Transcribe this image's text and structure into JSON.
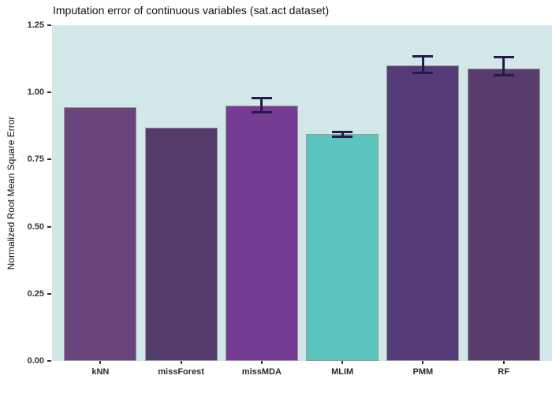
{
  "chart_data": {
    "type": "bar",
    "title": "Imputation error of continuous variables (sat.act dataset)",
    "xlabel": "",
    "ylabel": "Normalized Root Mean Square Error",
    "categories": [
      "kNN",
      "missForest",
      "missMDA",
      "MLIM",
      "PMM",
      "RF"
    ],
    "values": [
      0.945,
      0.87,
      0.95,
      0.845,
      1.1,
      1.088
    ],
    "error_bars": [
      null,
      null,
      {
        "min": 0.922,
        "max": 0.982
      },
      {
        "min": 0.831,
        "max": 0.858
      },
      {
        "min": 1.067,
        "max": 1.139
      },
      {
        "min": 1.058,
        "max": 1.136
      }
    ],
    "bar_colors": [
      "#6a447d",
      "#533c6b",
      "#763b92",
      "#5ac4bd",
      "#553c78",
      "#573c6c"
    ],
    "bar_stroke": "#999999",
    "errorbar_color": "#251a4a",
    "panel_bg": "#d2e8e8",
    "background": "#ffffff",
    "y_ticks": [
      "0.00",
      "0.25",
      "0.50",
      "0.75",
      "1.00",
      "1.25"
    ],
    "ylim": [
      0,
      1.25
    ],
    "grid": false,
    "legend": "none"
  }
}
